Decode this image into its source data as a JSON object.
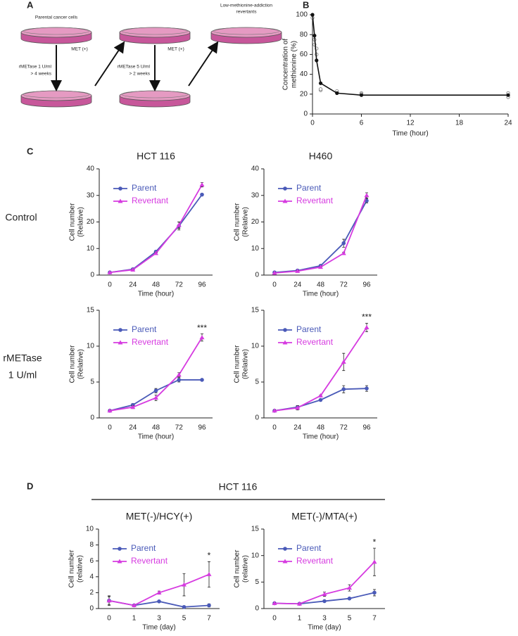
{
  "panel_labels": {
    "a": "A",
    "b": "B",
    "c": "C",
    "d": "D"
  },
  "diagram": {
    "parental": "Parental cancer cells",
    "revertants": [
      "Low-methionine-addiction",
      "revertants"
    ],
    "step1": [
      "rMETase 1 U/ml",
      "> 4 weeks"
    ],
    "met1": "MET (+)",
    "step2": [
      "rMETase 5 U/ml",
      "> 2 weeks"
    ],
    "met2": "MET (+)"
  },
  "row_labels": [
    [
      "Control"
    ],
    [
      "rMETase",
      "1 U/ml"
    ]
  ],
  "d_header": "HCT 116",
  "chart_data": [
    {
      "type": "line",
      "xlabel": "Time (hour)",
      "ylabel": [
        "Concentration of",
        "methionine (%)"
      ],
      "x": [
        0,
        0.25,
        0.5,
        1,
        3,
        6,
        24
      ],
      "values": [
        100,
        79,
        54,
        31,
        21,
        19,
        19
      ],
      "color": "#111111",
      "replicates_x": [
        0,
        0,
        0.25,
        0.25,
        0.5,
        0.5,
        1,
        1,
        3,
        3,
        6,
        6,
        24,
        24
      ],
      "replicates": [
        100,
        97,
        75,
        70,
        66,
        60,
        24,
        25,
        22,
        23,
        21,
        20,
        21,
        17
      ],
      "xlim": [
        0,
        24
      ],
      "xticks": [
        0,
        6,
        12,
        18,
        24
      ],
      "ylim": [
        0,
        100
      ],
      "yticks": [
        0,
        20,
        40,
        60,
        80,
        100
      ]
    },
    {
      "type": "line",
      "title": "HCT 116",
      "xlabel": "Time (hour)",
      "ylabel": [
        "Cell number",
        "(Relative)"
      ],
      "categories": [
        "0",
        "24",
        "48",
        "72",
        "96"
      ],
      "ylim": [
        0,
        40
      ],
      "yticks": [
        0,
        10,
        20,
        30,
        40
      ],
      "legend": "upper left",
      "series": [
        {
          "name": "Parent",
          "color": "#4a5ab8",
          "marker": "circle",
          "values": [
            1,
            2.2,
            8.8,
            18.5,
            30.3
          ],
          "errors": [
            0.1,
            0.2,
            0.5,
            1.5,
            0.4
          ]
        },
        {
          "name": "Revertant",
          "color": "#d63be0",
          "marker": "triangle",
          "values": [
            1,
            2,
            8.2,
            18.8,
            34
          ],
          "errors": [
            0.1,
            0.2,
            0.4,
            1.2,
            0.8
          ]
        }
      ]
    },
    {
      "type": "line",
      "title": "H460",
      "xlabel": "Time (hour)",
      "ylabel": [
        "Cell number",
        "(Relative)"
      ],
      "categories": [
        "0",
        "24",
        "48",
        "72",
        "96"
      ],
      "ylim": [
        0,
        40
      ],
      "yticks": [
        0,
        10,
        20,
        30,
        40
      ],
      "legend": "upper left",
      "series": [
        {
          "name": "Parent",
          "color": "#4a5ab8",
          "marker": "circle",
          "values": [
            1,
            1.7,
            3.5,
            12,
            28
          ],
          "errors": [
            0.2,
            0.3,
            0.3,
            1.5,
            0.8
          ]
        },
        {
          "name": "Revertant",
          "color": "#d63be0",
          "marker": "triangle",
          "values": [
            0.8,
            1.5,
            3,
            8.2,
            30
          ],
          "errors": [
            0.1,
            0.2,
            0.2,
            0.4,
            1
          ]
        }
      ]
    },
    {
      "type": "line",
      "xlabel": "Time (hour)",
      "ylabel": [
        "Cell number",
        "(Relative)"
      ],
      "categories": [
        "0",
        "24",
        "48",
        "72",
        "96"
      ],
      "ylim": [
        0,
        15
      ],
      "yticks": [
        0,
        5,
        10,
        15
      ],
      "legend": "upper left",
      "annotation": "***",
      "series": [
        {
          "name": "Parent",
          "color": "#4a5ab8",
          "marker": "circle",
          "values": [
            1,
            1.8,
            3.8,
            5.3,
            5.3
          ],
          "errors": [
            0.1,
            0.2,
            0.3,
            0.3,
            0.1
          ]
        },
        {
          "name": "Revertant",
          "color": "#d63be0",
          "marker": "triangle",
          "values": [
            1,
            1.5,
            2.8,
            6,
            11.2
          ],
          "errors": [
            0.1,
            0.2,
            0.4,
            0.3,
            0.5
          ]
        }
      ]
    },
    {
      "type": "line",
      "xlabel": "Time (hour)",
      "ylabel": [
        "Cell number",
        "(Relative)"
      ],
      "categories": [
        "0",
        "24",
        "48",
        "72",
        "96"
      ],
      "ylim": [
        0,
        15
      ],
      "yticks": [
        0,
        5,
        10,
        15
      ],
      "legend": "upper left",
      "annotation": "***",
      "series": [
        {
          "name": "Parent",
          "color": "#4a5ab8",
          "marker": "circle",
          "values": [
            1,
            1.5,
            2.5,
            4,
            4.1
          ],
          "errors": [
            0.1,
            0.2,
            0.1,
            0.5,
            0.4
          ]
        },
        {
          "name": "Revertant",
          "color": "#d63be0",
          "marker": "triangle",
          "values": [
            1,
            1.4,
            3.1,
            7.8,
            12.6
          ],
          "errors": [
            0.1,
            0.3,
            0.1,
            1.2,
            0.6
          ]
        }
      ]
    },
    {
      "type": "line",
      "title": "MET(-)/HCY(+)",
      "xlabel": "Time (day)",
      "ylabel": [
        "Cell number",
        "(relative)"
      ],
      "categories": [
        "0",
        "1",
        "3",
        "5",
        "7"
      ],
      "ylim": [
        0,
        10
      ],
      "yticks": [
        0,
        2,
        4,
        6,
        8,
        10
      ],
      "legend": "upper left",
      "annotation": "*",
      "series": [
        {
          "name": "Parent",
          "color": "#4a5ab8",
          "marker": "circle",
          "values": [
            1,
            0.4,
            0.9,
            0.2,
            0.4
          ],
          "errors": [
            0.6,
            0.05,
            0.05,
            0.05,
            0.2
          ]
        },
        {
          "name": "Revertant",
          "color": "#d63be0",
          "marker": "triangle",
          "values": [
            1,
            0.4,
            2,
            3,
            4.3
          ],
          "errors": [
            0.5,
            0.05,
            0.2,
            1.4,
            1.6
          ]
        }
      ]
    },
    {
      "type": "line",
      "title": "MET(-)/MTA(+)",
      "xlabel": "Time (day)",
      "ylabel": [
        "Cell number",
        "(relative)"
      ],
      "categories": [
        "0",
        "1",
        "3",
        "5",
        "7"
      ],
      "ylim": [
        0,
        15
      ],
      "yticks": [
        0,
        5,
        10,
        15
      ],
      "legend": "upper left",
      "annotation": "*",
      "series": [
        {
          "name": "Parent",
          "color": "#4a5ab8",
          "marker": "circle",
          "values": [
            1,
            0.9,
            1.4,
            1.9,
            3
          ],
          "errors": [
            0.1,
            0.1,
            0.1,
            0.1,
            0.6
          ]
        },
        {
          "name": "Revertant",
          "color": "#d63be0",
          "marker": "triangle",
          "values": [
            1,
            0.9,
            2.7,
            3.9,
            8.8
          ],
          "errors": [
            0.1,
            0.1,
            0.4,
            0.6,
            2.6
          ]
        }
      ]
    }
  ]
}
